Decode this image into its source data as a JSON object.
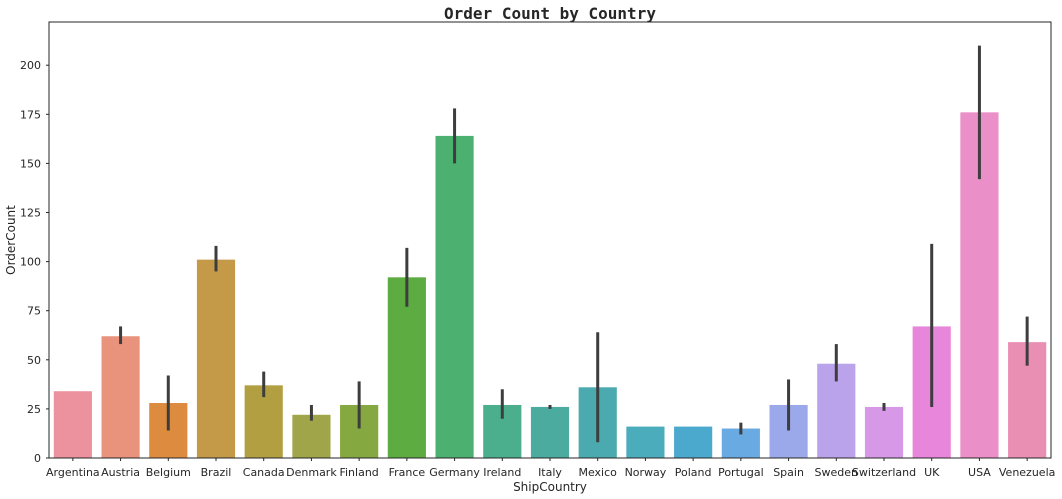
{
  "chart_data": {
    "type": "bar",
    "title": "Order Count by Country",
    "xlabel": "ShipCountry",
    "ylabel": "OrderCount",
    "ylim": [
      0,
      222
    ],
    "yticks": [
      0,
      25,
      50,
      75,
      100,
      125,
      150,
      175,
      200
    ],
    "grid": false,
    "legend": "none",
    "categories": [
      "Argentina",
      "Austria",
      "Belgium",
      "Brazil",
      "Canada",
      "Denmark",
      "Finland",
      "France",
      "Germany",
      "Ireland",
      "Italy",
      "Mexico",
      "Norway",
      "Poland",
      "Portugal",
      "Spain",
      "Sweden",
      "Switzerland",
      "UK",
      "USA",
      "Venezuela"
    ],
    "values": [
      34,
      62,
      28,
      101,
      37,
      22,
      27,
      92,
      164,
      27,
      26,
      36,
      16,
      16,
      15,
      27,
      48,
      26,
      67,
      176,
      59
    ],
    "error_low": [
      34,
      58,
      14,
      95,
      31,
      19,
      15,
      77,
      150,
      20,
      25,
      8,
      16,
      16,
      12,
      14,
      39,
      24,
      26,
      142,
      47
    ],
    "error_high": [
      34,
      67,
      42,
      108,
      44,
      27,
      39,
      107,
      178,
      35,
      27,
      64,
      16,
      16,
      18,
      40,
      58,
      28,
      109,
      210,
      72
    ],
    "colors": [
      "#ec919e",
      "#e9937c",
      "#dd8b3e",
      "#c49a48",
      "#b29f42",
      "#9fa548",
      "#86a840",
      "#5cac42",
      "#4cb070",
      "#4bae8d",
      "#4bab9f",
      "#4aaaaf",
      "#4bacbc",
      "#4ba9cd",
      "#6aaae2",
      "#9ba9ea",
      "#baa3ea",
      "#d798e7",
      "#e786da",
      "#ea8fc7",
      "#ea8fb4"
    ]
  }
}
